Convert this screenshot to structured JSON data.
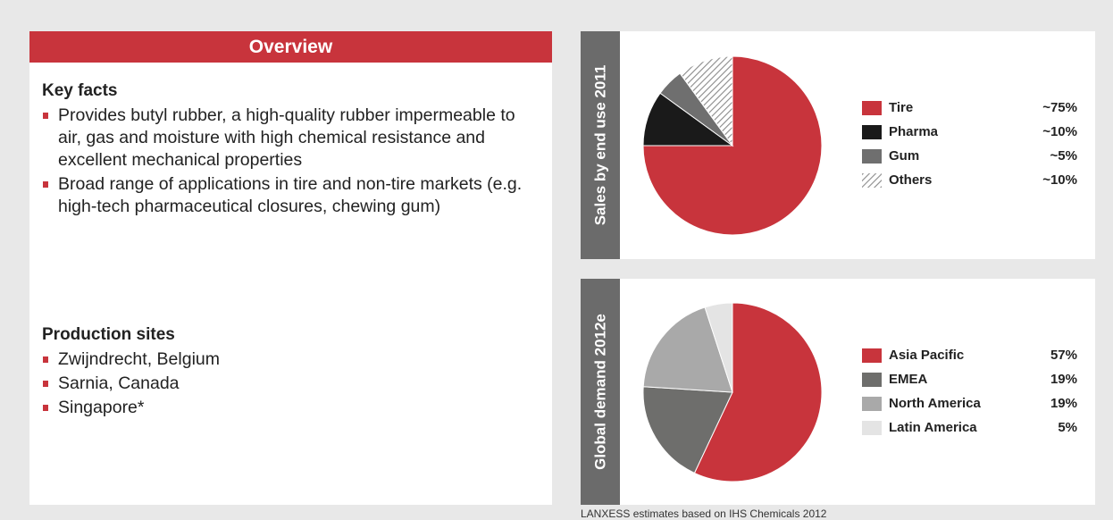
{
  "overview": {
    "title": "Overview",
    "sections": [
      {
        "heading": "Key facts",
        "items": [
          "Provides butyl rubber, a high-quality rubber impermeable to air, gas and moisture with high chemical resistance and excellent mechanical properties",
          "Broad range of applications in tire and non-tire markets (e.g. high-tech pharmaceutical closures, chewing gum)"
        ]
      },
      {
        "heading": "Production sites",
        "items": [
          "Zwijndrecht, Belgium",
          "Sarnia, Canada",
          "Singapore*"
        ]
      }
    ]
  },
  "chart_data": [
    {
      "type": "pie",
      "title": "Sales by end use 2011",
      "categories": [
        "Tire",
        "Pharma",
        "Gum",
        "Others"
      ],
      "values": [
        75,
        10,
        5,
        10
      ],
      "value_labels": [
        "~75%",
        "~10%",
        "~5%",
        "~10%"
      ],
      "colors": [
        "#c8343c",
        "#1a1a1a",
        "#6f6f6f",
        "#9a9a9a"
      ],
      "hatched": [
        false,
        false,
        false,
        true
      ]
    },
    {
      "type": "pie",
      "title": "Global demand 2012e",
      "categories": [
        "Asia Pacific",
        "EMEA",
        "North America",
        "Latin America"
      ],
      "values": [
        57,
        19,
        19,
        5
      ],
      "value_labels": [
        "57%",
        "19%",
        "19%",
        "5%"
      ],
      "colors": [
        "#c8343c",
        "#6e6e6c",
        "#a9a9a9",
        "#e4e4e4"
      ],
      "hatched": [
        false,
        false,
        false,
        false
      ]
    }
  ],
  "source": "LANXESS estimates based on IHS Chemicals 2012"
}
